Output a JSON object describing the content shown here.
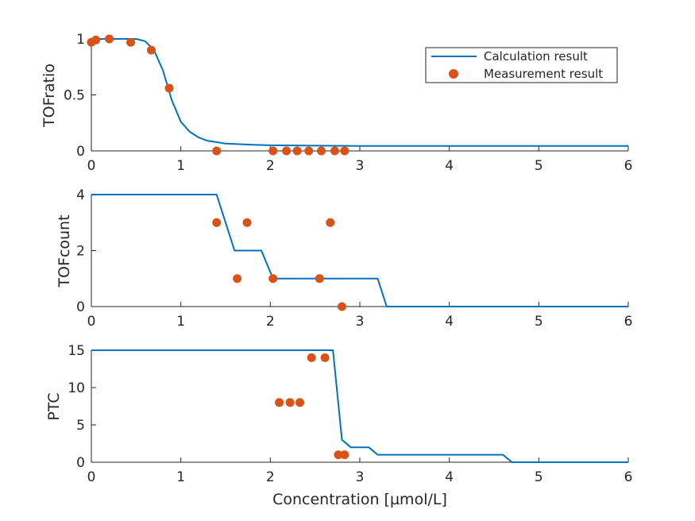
{
  "figure": {
    "xlabel": "Concentration [µmol/L]",
    "colors": {
      "calc": "#0072BD",
      "meas": "#D95319",
      "axis": "#262626"
    },
    "legend": {
      "position": "top-right",
      "calc_label": "Calculation result",
      "meas_label": "Measurement result"
    }
  },
  "chart_data": [
    {
      "type": "line",
      "title": "",
      "ylabel": "TOFratio",
      "xlim": [
        0,
        6
      ],
      "ylim": [
        0,
        1
      ],
      "xticks": [
        0,
        1,
        2,
        3,
        4,
        5,
        6
      ],
      "yticks": [
        0,
        0.5,
        1
      ],
      "ytick_labels": [
        "0",
        "0.5",
        "1"
      ],
      "grid": false,
      "series": [
        {
          "name": "Calculation result",
          "kind": "line",
          "x": [
            0,
            0.5,
            0.6,
            0.7,
            0.8,
            0.9,
            1.0,
            1.1,
            1.2,
            1.3,
            1.5,
            1.8,
            2.0,
            2.5,
            3.0,
            4.0,
            5.0,
            6.0
          ],
          "y": [
            1.0,
            1.0,
            0.98,
            0.9,
            0.72,
            0.45,
            0.26,
            0.17,
            0.12,
            0.09,
            0.065,
            0.055,
            0.05,
            0.047,
            0.045,
            0.045,
            0.045,
            0.045
          ]
        },
        {
          "name": "Measurement result",
          "kind": "scatter",
          "x": [
            0.0,
            0.05,
            0.2,
            0.44,
            0.67,
            0.87,
            1.4,
            2.03,
            2.18,
            2.3,
            2.43,
            2.57,
            2.72,
            2.83
          ],
          "y": [
            0.97,
            0.99,
            1.0,
            0.97,
            0.9,
            0.56,
            0.0,
            0.0,
            0.0,
            0.0,
            0.0,
            0.0,
            0.0,
            0.0
          ]
        }
      ]
    },
    {
      "type": "line",
      "title": "",
      "ylabel": "TOFcount",
      "xlim": [
        0,
        6
      ],
      "ylim": [
        0,
        4
      ],
      "xticks": [
        0,
        1,
        2,
        3,
        4,
        5,
        6
      ],
      "yticks": [
        0,
        2,
        4
      ],
      "ytick_labels": [
        "0",
        "2",
        "4"
      ],
      "grid": false,
      "series": [
        {
          "name": "Calculation result",
          "kind": "line",
          "x": [
            0,
            1.4,
            1.6,
            1.9,
            2.03,
            3.2,
            3.3,
            6.0
          ],
          "y": [
            4,
            4,
            2,
            2,
            1,
            1,
            0,
            0
          ]
        },
        {
          "name": "Measurement result",
          "kind": "scatter",
          "x": [
            1.4,
            1.63,
            1.74,
            2.03,
            2.55,
            2.67,
            2.8
          ],
          "y": [
            3,
            1,
            3,
            1,
            1,
            3,
            0
          ]
        }
      ]
    },
    {
      "type": "line",
      "title": "",
      "ylabel": "PTC",
      "xlim": [
        0,
        6
      ],
      "ylim": [
        0,
        15
      ],
      "xticks": [
        0,
        1,
        2,
        3,
        4,
        5,
        6
      ],
      "yticks": [
        0,
        5,
        10,
        15
      ],
      "ytick_labels": [
        "0",
        "5",
        "10",
        "15"
      ],
      "grid": false,
      "series": [
        {
          "name": "Calculation result",
          "kind": "line",
          "x": [
            0,
            2.7,
            2.8,
            2.9,
            3.1,
            3.2,
            4.6,
            4.7,
            6.0
          ],
          "y": [
            15,
            15,
            3,
            2,
            2,
            1,
            1,
            0,
            0
          ]
        },
        {
          "name": "Measurement result",
          "kind": "scatter",
          "x": [
            2.1,
            2.22,
            2.33,
            2.46,
            2.61,
            2.76,
            2.83
          ],
          "y": [
            8,
            8,
            8,
            14,
            14,
            1,
            1
          ]
        }
      ]
    }
  ]
}
